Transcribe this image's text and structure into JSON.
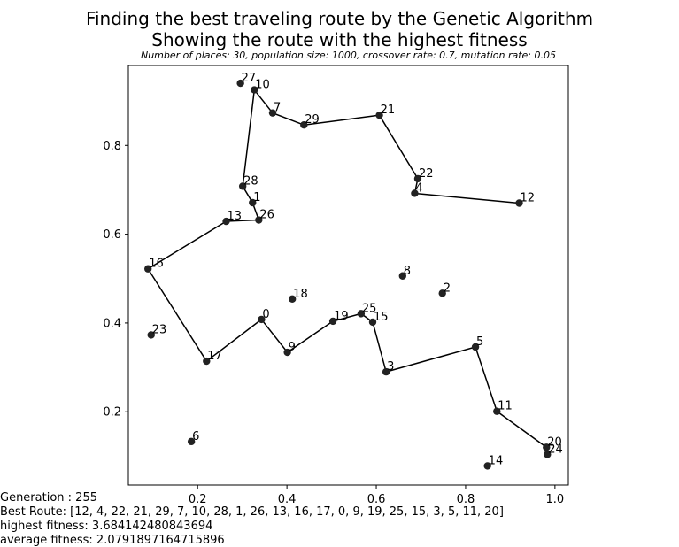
{
  "title_line1": "Finding the best traveling route by the Genetic Algorithm",
  "title_line2": "Showing the route with the highest fitness",
  "subtitle": "Number of places: 30, population size: 1000, crossover rate: 0.7, mutation rate: 0.05",
  "info": {
    "generation": "Generation : 255",
    "best_route": "Best Route: [12, 4, 22, 21, 29, 7, 10, 28, 1, 26, 13, 16, 17, 0, 9, 19, 25, 15, 3, 5, 11, 20]",
    "highest_fitness": "highest fitness: 3.684142480843694",
    "average_fitness": "average fitness: 2.0791897164715896"
  },
  "chart_data": {
    "type": "scatter",
    "xlim": [
      0.045,
      1.03
    ],
    "ylim": [
      0.035,
      0.98
    ],
    "x_ticks": [
      0.2,
      0.4,
      0.6,
      0.8,
      1.0
    ],
    "x_tick_labels": [
      "0.2",
      "0.4",
      "0.6",
      "0.8",
      "1.0"
    ],
    "y_ticks": [
      0.2,
      0.4,
      0.6,
      0.8
    ],
    "y_tick_labels": [
      "0.2",
      "0.4",
      "0.6",
      "0.8"
    ],
    "grid": false,
    "point_color": "#222222",
    "line_color": "#000000",
    "points": [
      {
        "id": 0,
        "label": "0",
        "x": 0.343,
        "y": 0.408
      },
      {
        "id": 1,
        "label": "1",
        "x": 0.323,
        "y": 0.671
      },
      {
        "id": 2,
        "label": "2",
        "x": 0.748,
        "y": 0.467
      },
      {
        "id": 3,
        "label": "3",
        "x": 0.622,
        "y": 0.29
      },
      {
        "id": 4,
        "label": "4",
        "x": 0.686,
        "y": 0.692
      },
      {
        "id": 5,
        "label": "5",
        "x": 0.822,
        "y": 0.346
      },
      {
        "id": 6,
        "label": "6",
        "x": 0.186,
        "y": 0.133
      },
      {
        "id": 7,
        "label": "7",
        "x": 0.368,
        "y": 0.873
      },
      {
        "id": 8,
        "label": "8",
        "x": 0.659,
        "y": 0.506
      },
      {
        "id": 9,
        "label": "9",
        "x": 0.401,
        "y": 0.334
      },
      {
        "id": 10,
        "label": "10",
        "x": 0.327,
        "y": 0.925
      },
      {
        "id": 11,
        "label": "11",
        "x": 0.87,
        "y": 0.201
      },
      {
        "id": 12,
        "label": "12",
        "x": 0.92,
        "y": 0.67
      },
      {
        "id": 13,
        "label": "13",
        "x": 0.264,
        "y": 0.629
      },
      {
        "id": 14,
        "label": "14",
        "x": 0.849,
        "y": 0.078
      },
      {
        "id": 15,
        "label": "15",
        "x": 0.592,
        "y": 0.402
      },
      {
        "id": 16,
        "label": "16",
        "x": 0.089,
        "y": 0.522
      },
      {
        "id": 17,
        "label": "17",
        "x": 0.22,
        "y": 0.314
      },
      {
        "id": 18,
        "label": "18",
        "x": 0.412,
        "y": 0.454
      },
      {
        "id": 19,
        "label": "19",
        "x": 0.503,
        "y": 0.404
      },
      {
        "id": 20,
        "label": "20",
        "x": 0.981,
        "y": 0.12
      },
      {
        "id": 21,
        "label": "21",
        "x": 0.607,
        "y": 0.868
      },
      {
        "id": 22,
        "label": "22",
        "x": 0.693,
        "y": 0.725
      },
      {
        "id": 23,
        "label": "23",
        "x": 0.096,
        "y": 0.373
      },
      {
        "id": 24,
        "label": "24",
        "x": 0.983,
        "y": 0.104
      },
      {
        "id": 25,
        "label": "25",
        "x": 0.566,
        "y": 0.421
      },
      {
        "id": 26,
        "label": "26",
        "x": 0.337,
        "y": 0.632
      },
      {
        "id": 27,
        "label": "27",
        "x": 0.296,
        "y": 0.94
      },
      {
        "id": 28,
        "label": "28",
        "x": 0.301,
        "y": 0.708
      },
      {
        "id": 29,
        "label": "29",
        "x": 0.438,
        "y": 0.846
      }
    ],
    "route": [
      12,
      4,
      22,
      21,
      29,
      7,
      10,
      28,
      1,
      26,
      13,
      16,
      17,
      0,
      9,
      19,
      25,
      15,
      3,
      5,
      11,
      20
    ]
  }
}
